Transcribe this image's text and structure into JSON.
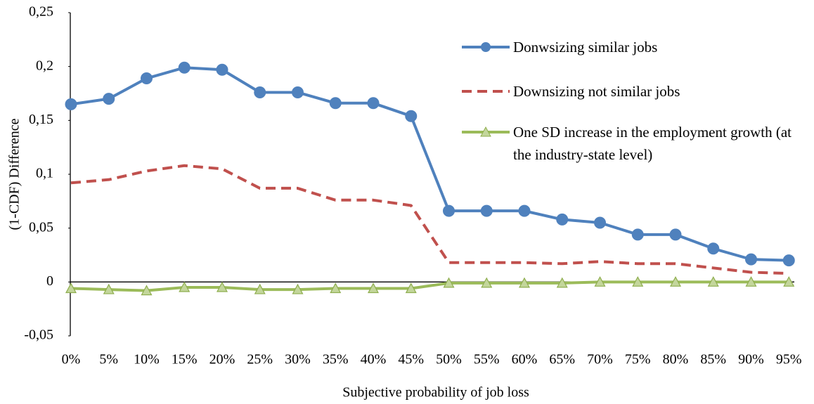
{
  "chart_data": {
    "type": "line",
    "x_label": "Subjective probability of job loss",
    "y_label": "(1-CDF) Difference",
    "categories": [
      "0%",
      "5%",
      "10%",
      "15%",
      "20%",
      "25%",
      "30%",
      "35%",
      "40%",
      "45%",
      "50%",
      "55%",
      "60%",
      "65%",
      "70%",
      "75%",
      "80%",
      "85%",
      "90%",
      "95%"
    ],
    "ylim": [
      -0.05,
      0.25
    ],
    "yticks": [
      {
        "value": -0.05,
        "label": "-0,05"
      },
      0,
      {
        "value": 0.05,
        "label": "0,05"
      },
      {
        "value": 0.1,
        "label": "0,1"
      },
      {
        "value": 0.15,
        "label": "0,15"
      },
      {
        "value": 0.2,
        "label": "0,2"
      },
      {
        "value": 0.25,
        "label": "0,25"
      }
    ],
    "grid": false,
    "legend": "right",
    "series": [
      {
        "name": "Donwsizing similar jobs",
        "color": "#4f81bd",
        "dash": "solid",
        "marker": "circle",
        "values": [
          0.165,
          0.17,
          0.189,
          0.199,
          0.197,
          0.176,
          0.176,
          0.166,
          0.166,
          0.154,
          0.066,
          0.066,
          0.066,
          0.058,
          0.055,
          0.044,
          0.044,
          0.031,
          0.021,
          0.02
        ]
      },
      {
        "name": "Downsizing not similar jobs",
        "color": "#c0504d",
        "dash": "dashed",
        "marker": "none",
        "values": [
          0.092,
          0.095,
          0.103,
          0.108,
          0.105,
          0.087,
          0.087,
          0.076,
          0.076,
          0.071,
          0.018,
          0.018,
          0.018,
          0.017,
          0.019,
          0.017,
          0.017,
          0.013,
          0.009,
          0.008
        ]
      },
      {
        "name": "One SD increase in the employment growth (at the industry-state level)",
        "color": "#9bbb59",
        "dash": "solid",
        "marker": "triangle",
        "values": [
          -0.006,
          -0.007,
          -0.008,
          -0.005,
          -0.005,
          -0.007,
          -0.007,
          -0.006,
          -0.006,
          -0.006,
          -0.001,
          -0.001,
          -0.001,
          -0.001,
          0,
          0,
          0,
          0,
          0,
          0
        ]
      }
    ]
  }
}
